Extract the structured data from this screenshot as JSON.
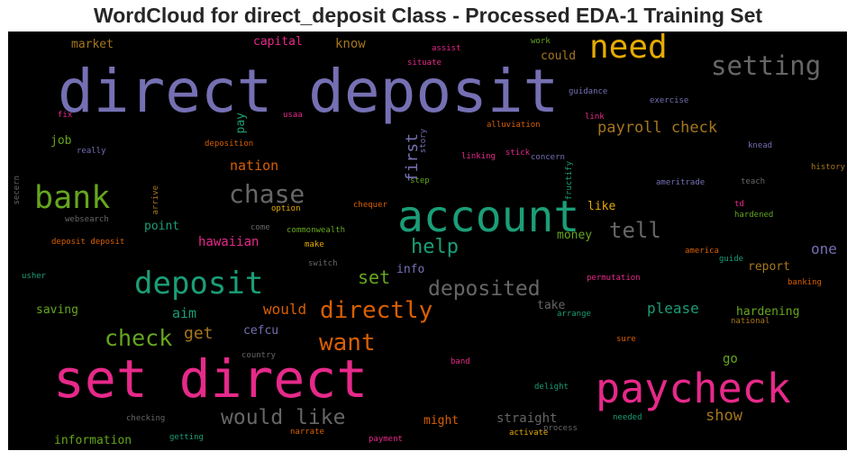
{
  "chart_data": {
    "type": "wordcloud",
    "title": "WordCloud for direct_deposit Class - Processed EDA-1 Training Set",
    "background": "#000000",
    "words": [
      {
        "text": "direct deposit",
        "color": "#7570b3"
      },
      {
        "text": "set direct",
        "color": "#e7298a"
      },
      {
        "text": "account",
        "color": "#1b9e77"
      },
      {
        "text": "paycheck",
        "color": "#e7298a"
      },
      {
        "text": "need",
        "color": "#e6ab02"
      },
      {
        "text": "bank",
        "color": "#66a61e"
      },
      {
        "text": "deposit",
        "color": "#1b9e77"
      },
      {
        "text": "setting",
        "color": "#666666"
      },
      {
        "text": "chase",
        "color": "#666666"
      },
      {
        "text": "directly",
        "color": "#d95f02"
      },
      {
        "text": "want",
        "color": "#d95f02"
      },
      {
        "text": "check",
        "color": "#66a61e"
      },
      {
        "text": "deposited",
        "color": "#666666"
      },
      {
        "text": "would like",
        "color": "#666666"
      },
      {
        "text": "tell",
        "color": "#666666"
      },
      {
        "text": "help",
        "color": "#1b9e77"
      },
      {
        "text": "first",
        "color": "#7570b3"
      },
      {
        "text": "payroll check",
        "color": "#a6761d"
      },
      {
        "text": "set",
        "color": "#66a61e"
      },
      {
        "text": "would",
        "color": "#d95f02"
      },
      {
        "text": "show",
        "color": "#a6761d"
      },
      {
        "text": "please",
        "color": "#1b9e77"
      },
      {
        "text": "get",
        "color": "#a6761d"
      },
      {
        "text": "nation",
        "color": "#d95f02"
      },
      {
        "text": "aim",
        "color": "#1b9e77"
      },
      {
        "text": "hardening",
        "color": "#66a61e"
      },
      {
        "text": "one",
        "color": "#7570b3"
      },
      {
        "text": "hawaiian",
        "color": "#e7298a"
      },
      {
        "text": "know",
        "color": "#a6761d"
      },
      {
        "text": "straight",
        "color": "#666666"
      },
      {
        "text": "might",
        "color": "#d95f02"
      },
      {
        "text": "report",
        "color": "#a6761d"
      },
      {
        "text": "money",
        "color": "#66a61e"
      },
      {
        "text": "capital",
        "color": "#e7298a"
      },
      {
        "text": "market",
        "color": "#a6761d"
      },
      {
        "text": "could",
        "color": "#a6761d"
      },
      {
        "text": "point",
        "color": "#1b9e77"
      },
      {
        "text": "like",
        "color": "#e6ab02"
      },
      {
        "text": "saving",
        "color": "#66a61e"
      },
      {
        "text": "information",
        "color": "#66a61e"
      },
      {
        "text": "go",
        "color": "#66a61e"
      },
      {
        "text": "take",
        "color": "#666666"
      },
      {
        "text": "info",
        "color": "#7570b3"
      },
      {
        "text": "cefcu",
        "color": "#7570b3"
      },
      {
        "text": "job",
        "color": "#66a61e"
      },
      {
        "text": "pay",
        "color": "#1b9e77"
      },
      {
        "text": "assist",
        "color": "#e7298a"
      },
      {
        "text": "situate",
        "color": "#e7298a"
      },
      {
        "text": "work",
        "color": "#66a61e"
      },
      {
        "text": "guidance",
        "color": "#7570b3"
      },
      {
        "text": "exercise",
        "color": "#7570b3"
      },
      {
        "text": "fix",
        "color": "#e7298a"
      },
      {
        "text": "usaa",
        "color": "#e7298a"
      },
      {
        "text": "alluviation",
        "color": "#d95f02"
      },
      {
        "text": "link",
        "color": "#e7298a"
      },
      {
        "text": "really",
        "color": "#7570b3"
      },
      {
        "text": "deposition",
        "color": "#d95f02"
      },
      {
        "text": "story",
        "color": "#7570b3"
      },
      {
        "text": "linking",
        "color": "#e7298a"
      },
      {
        "text": "stick",
        "color": "#e7298a"
      },
      {
        "text": "concern",
        "color": "#7570b3"
      },
      {
        "text": "knead",
        "color": "#7570b3"
      },
      {
        "text": "history",
        "color": "#a6761d"
      },
      {
        "text": "ameritrade",
        "color": "#7570b3"
      },
      {
        "text": "teach",
        "color": "#666666"
      },
      {
        "text": "fructify",
        "color": "#1b9e77"
      },
      {
        "text": "step",
        "color": "#66a61e"
      },
      {
        "text": "arrive",
        "color": "#a6761d"
      },
      {
        "text": "secern",
        "color": "#666666"
      },
      {
        "text": "chequer",
        "color": "#d95f02"
      },
      {
        "text": "td",
        "color": "#e7298a"
      },
      {
        "text": "hardened",
        "color": "#66a61e"
      },
      {
        "text": "websearch",
        "color": "#666666"
      },
      {
        "text": "option",
        "color": "#e6ab02"
      },
      {
        "text": "come",
        "color": "#666666"
      },
      {
        "text": "commonwealth",
        "color": "#66a61e"
      },
      {
        "text": "deposit deposit",
        "color": "#d95f02"
      },
      {
        "text": "make",
        "color": "#e6ab02"
      },
      {
        "text": "america",
        "color": "#d95f02"
      },
      {
        "text": "guide",
        "color": "#1b9e77"
      },
      {
        "text": "switch",
        "color": "#666666"
      },
      {
        "text": "usher",
        "color": "#1b9e77"
      },
      {
        "text": "permutation",
        "color": "#e7298a"
      },
      {
        "text": "banking",
        "color": "#d95f02"
      },
      {
        "text": "arrange",
        "color": "#1b9e77"
      },
      {
        "text": "national",
        "color": "#a6761d"
      },
      {
        "text": "country",
        "color": "#666666"
      },
      {
        "text": "sure",
        "color": "#d95f02"
      },
      {
        "text": "band",
        "color": "#e7298a"
      },
      {
        "text": "delight",
        "color": "#1b9e77"
      },
      {
        "text": "needed",
        "color": "#1b9e77"
      },
      {
        "text": "checking",
        "color": "#666666"
      },
      {
        "text": "getting",
        "color": "#1b9e77"
      },
      {
        "text": "narrate",
        "color": "#d95f02"
      },
      {
        "text": "payment",
        "color": "#e7298a"
      },
      {
        "text": "activate",
        "color": "#e6ab02"
      },
      {
        "text": "process",
        "color": "#666666"
      }
    ]
  }
}
